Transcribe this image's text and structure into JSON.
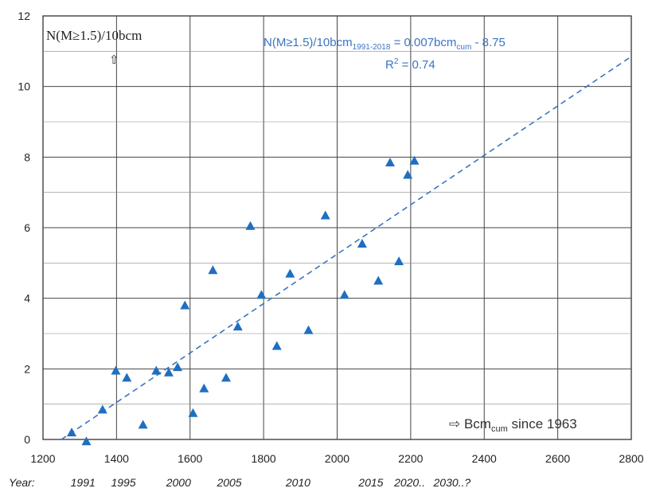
{
  "chart_data": {
    "type": "scatter",
    "x_ticks": [
      "1200",
      "1400",
      "1600",
      "1800",
      "2000",
      "2200",
      "2400",
      "2600",
      "2800"
    ],
    "y_ticks": [
      "0",
      "2",
      "4",
      "6",
      "8",
      "10",
      "12"
    ],
    "xlim": [
      1200,
      2800
    ],
    "ylim": [
      0,
      12
    ],
    "grid": true,
    "series": [
      {
        "marker": "triangle",
        "color": "#1f6fc1",
        "points": [
          [
            1278,
            0.2
          ],
          [
            1318,
            -0.05
          ],
          [
            1362,
            0.85
          ],
          [
            1398,
            1.95
          ],
          [
            1428,
            1.75
          ],
          [
            1472,
            0.42
          ],
          [
            1508,
            1.95
          ],
          [
            1542,
            1.9
          ],
          [
            1566,
            2.05
          ],
          [
            1586,
            3.8
          ],
          [
            1608,
            0.75
          ],
          [
            1638,
            1.45
          ],
          [
            1662,
            4.8
          ],
          [
            1698,
            1.75
          ],
          [
            1730,
            3.2
          ],
          [
            1764,
            6.05
          ],
          [
            1794,
            4.1
          ],
          [
            1836,
            2.65
          ],
          [
            1872,
            4.7
          ],
          [
            1922,
            3.1
          ],
          [
            1968,
            6.35
          ],
          [
            2020,
            4.1
          ],
          [
            2068,
            5.55
          ],
          [
            2112,
            4.5
          ],
          [
            2144,
            7.85
          ],
          [
            2168,
            5.05
          ],
          [
            2192,
            7.5
          ],
          [
            2210,
            7.9
          ]
        ]
      }
    ],
    "trendline": {
      "style": "dashed",
      "color": "#3a74c4",
      "x": [
        1250,
        2800
      ],
      "y": [
        0,
        10.85
      ]
    },
    "y_axis_label": "N(M≥1.5)/10bcm",
    "y_axis_arrow": "⇧",
    "equation": {
      "prefix": "N(M≥1.5)/10bcm",
      "subscript1": "1991-2018",
      "middle": " = 0.007bcm",
      "subscript2": "cum",
      "suffix": " - 8.75"
    },
    "r_squared": {
      "prefix": "R",
      "sup": "2",
      "suffix": " = 0.74"
    },
    "x_axis_note": {
      "arrow": "⇨",
      "prefix": " Bcm",
      "subscript": "cum",
      "suffix": " since 1963"
    },
    "year_row": {
      "label": "Year:",
      "years": [
        {
          "text": "1991",
          "at": 1275
        },
        {
          "text": "1995",
          "at": 1385
        },
        {
          "text": "2000",
          "at": 1535
        },
        {
          "text": "2005",
          "at": 1673
        },
        {
          "text": "2010",
          "at": 1860
        },
        {
          "text": "2015",
          "at": 2058
        },
        {
          "text": "2020..",
          "at": 2155
        },
        {
          "text": "2030..?",
          "at": 2262
        }
      ]
    }
  }
}
